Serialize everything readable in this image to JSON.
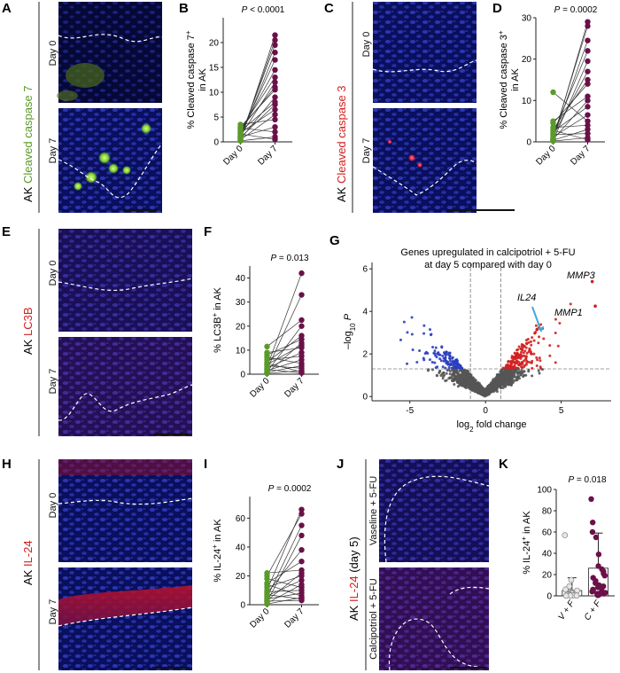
{
  "colors": {
    "green": "#5a9a2a",
    "purple": "#6b1048",
    "red": "#d32020",
    "blue": "#2a3ec0",
    "gray": "#555555",
    "cyan_arrow": "#3fa9d8",
    "dapi": "#0a0f6a",
    "caspase7": "#7ecf32",
    "caspase3": "#e8203a"
  },
  "panels": {
    "A": {
      "letter": "A",
      "side_prefix": "AK ",
      "side_marker": "Cleaved caspase 7",
      "top": "Day 0",
      "bottom": "Day 7"
    },
    "B": {
      "letter": "B"
    },
    "C": {
      "letter": "C",
      "side_prefix": "AK ",
      "side_marker": "Cleaved caspase 3",
      "top": "Day 0",
      "bottom": "Day 7"
    },
    "D": {
      "letter": "D"
    },
    "E": {
      "letter": "E",
      "side_prefix": "AK ",
      "side_marker": "LC3B",
      "top": "Day 0",
      "bottom": "Day 7"
    },
    "F": {
      "letter": "F"
    },
    "G": {
      "letter": "G"
    },
    "H": {
      "letter": "H",
      "side_prefix": "AK ",
      "side_marker": "IL-24",
      "top": "Day 0",
      "bottom": "Day 7"
    },
    "I": {
      "letter": "I"
    },
    "J": {
      "letter": "J",
      "side_prefix": "AK ",
      "side_marker": "IL-24",
      "side_suffix": " (day 5)",
      "top": "Vaseline + 5-FU",
      "bottom": "Calcipotriol + 5-FU"
    },
    "K": {
      "letter": "K"
    }
  },
  "chart_data": [
    {
      "id": "B",
      "type": "scatter",
      "subtype": "paired",
      "title": "P < 0.0001",
      "title_prefix": "P",
      " title_rest": " < 0.0001",
      "ylabel_main": "% Cleaved caspase 7",
      "ylabel_sup": "+",
      "ylabel_line2": "in AK",
      "categories": [
        "Day 0",
        "Day 7"
      ],
      "ylim": [
        0,
        25
      ],
      "yticks": [
        0,
        5,
        10,
        15,
        20
      ],
      "pairs": [
        [
          0.3,
          21.5
        ],
        [
          0.5,
          20.5
        ],
        [
          1.0,
          19.5
        ],
        [
          0.8,
          18.0
        ],
        [
          1.5,
          16.5
        ],
        [
          2.0,
          14.5
        ],
        [
          2.5,
          13.0
        ],
        [
          1.2,
          12.0
        ],
        [
          3.0,
          10.5
        ],
        [
          0.6,
          9.0
        ],
        [
          2.2,
          8.0
        ],
        [
          1.8,
          6.5
        ],
        [
          0.4,
          5.5
        ],
        [
          3.5,
          4.5
        ],
        [
          1.0,
          3.0
        ],
        [
          2.8,
          2.0
        ],
        [
          0.2,
          1.0
        ],
        [
          1.6,
          0.5
        ],
        [
          0.9,
          7.5
        ],
        [
          2.6,
          11.0
        ]
      ]
    },
    {
      "id": "D",
      "type": "scatter",
      "subtype": "paired",
      "title": "P = 0.0002",
      "ylabel_main": "% Cleaved caspase 3",
      "ylabel_sup": "+",
      "ylabel_line2": "in AK",
      "categories": [
        "Day 0",
        "Day 7"
      ],
      "ylim": [
        0,
        30
      ],
      "yticks": [
        0,
        10,
        20,
        30
      ],
      "pairs": [
        [
          0.5,
          29.0
        ],
        [
          1.0,
          28.0
        ],
        [
          0.8,
          24.5
        ],
        [
          2.0,
          22.0
        ],
        [
          0.3,
          19.5
        ],
        [
          1.5,
          17.0
        ],
        [
          3.0,
          15.0
        ],
        [
          4.5,
          14.0
        ],
        [
          5.0,
          11.0
        ],
        [
          0.6,
          10.0
        ],
        [
          2.5,
          8.5
        ],
        [
          1.2,
          6.5
        ],
        [
          12.0,
          5.0
        ],
        [
          3.5,
          4.0
        ],
        [
          0.4,
          3.0
        ],
        [
          1.8,
          2.0
        ],
        [
          0.2,
          1.0
        ],
        [
          2.8,
          0.5
        ]
      ]
    },
    {
      "id": "F",
      "type": "scatter",
      "subtype": "paired",
      "title": "P = 0.013",
      "ylabel_main": "% LC3B",
      "ylabel_sup": "+",
      "ylabel_line2": " in AK",
      "categories": [
        "Day 0",
        "Day 7"
      ],
      "ylim": [
        0,
        45
      ],
      "yticks": [
        0,
        10,
        20,
        30,
        40
      ],
      "pairs": [
        [
          3.0,
          42.0
        ],
        [
          2.0,
          33.0
        ],
        [
          11.5,
          22.5
        ],
        [
          1.0,
          20.0
        ],
        [
          5.0,
          16.0
        ],
        [
          8.0,
          14.5
        ],
        [
          0.5,
          13.0
        ],
        [
          4.0,
          12.0
        ],
        [
          9.0,
          11.0
        ],
        [
          2.5,
          9.0
        ],
        [
          6.0,
          7.5
        ],
        [
          1.5,
          6.0
        ],
        [
          7.0,
          4.5
        ],
        [
          0.8,
          3.5
        ],
        [
          3.5,
          2.5
        ],
        [
          0.3,
          1.5
        ],
        [
          4.5,
          1.0
        ],
        [
          2.0,
          0.5
        ]
      ]
    },
    {
      "id": "G",
      "type": "scatter",
      "subtype": "volcano",
      "title_line1": "Genes upregulated in calcipotriol + 5-FU",
      "title_line2": "at day 5 compared with day 0",
      "xlabel_pre": "log",
      "xlabel_sub": "2",
      "xlabel_post": " fold change",
      "ylabel_pre": "–log",
      "ylabel_sub": "10",
      "ylabel_post": " P",
      "xlim": [
        -7.5,
        8.3
      ],
      "ylim": [
        -0.2,
        6.3
      ],
      "xticks": [
        -5,
        0,
        5
      ],
      "yticks": [
        0,
        2,
        4,
        6
      ],
      "fc_threshold": 1,
      "p_threshold": 1.3,
      "labeled_genes": [
        {
          "name": "MMP3",
          "x": 7.05,
          "y": 5.4
        },
        {
          "name": "MMP1",
          "x": 7.25,
          "y": 4.25
        },
        {
          "name": "IL24",
          "x": 3.4,
          "y": 3.15
        }
      ]
    },
    {
      "id": "I",
      "type": "scatter",
      "subtype": "paired",
      "title": "P = 0.0002",
      "ylabel_main": "% IL-24",
      "ylabel_sup": "+",
      "ylabel_line2": " in AK",
      "categories": [
        "Day 0",
        "Day 7"
      ],
      "ylim": [
        0,
        75
      ],
      "yticks": [
        0,
        20,
        40,
        60
      ],
      "pairs": [
        [
          10.0,
          66.0
        ],
        [
          20.0,
          63.0
        ],
        [
          5.0,
          55.0
        ],
        [
          2.0,
          48.0
        ],
        [
          8.0,
          38.0
        ],
        [
          15.0,
          30.0
        ],
        [
          22.0,
          24.0
        ],
        [
          3.0,
          22.0
        ],
        [
          12.0,
          20.0
        ],
        [
          6.0,
          17.0
        ],
        [
          1.0,
          14.0
        ],
        [
          18.0,
          12.0
        ],
        [
          9.0,
          10.0
        ],
        [
          4.0,
          8.0
        ],
        [
          14.0,
          6.0
        ],
        [
          0.5,
          5.0
        ],
        [
          7.0,
          4.0
        ],
        [
          2.5,
          3.0
        ]
      ]
    },
    {
      "id": "K",
      "type": "bar",
      "title": "P = 0.018",
      "ylabel_main": "% IL-24",
      "ylabel_sup": "+",
      "ylabel_line2": " in AK",
      "categories": [
        "V + F",
        "C + F"
      ],
      "ylim": [
        0,
        100
      ],
      "yticks": [
        0,
        20,
        40,
        60,
        80,
        100
      ],
      "means": [
        5,
        26
      ],
      "errors": [
        12,
        33
      ],
      "points": [
        [
          57,
          15,
          9,
          6,
          5,
          4,
          3.5,
          3,
          2.5,
          2,
          1.5,
          1,
          1,
          0.5,
          0.5,
          0.2,
          0.2,
          0.1
        ],
        [
          91,
          69,
          60,
          55,
          39,
          28,
          25,
          23,
          21,
          19,
          17,
          14,
          12,
          10,
          9,
          8,
          7,
          6,
          5,
          4,
          3,
          3,
          2,
          2,
          1,
          1,
          0.5
        ]
      ]
    }
  ]
}
